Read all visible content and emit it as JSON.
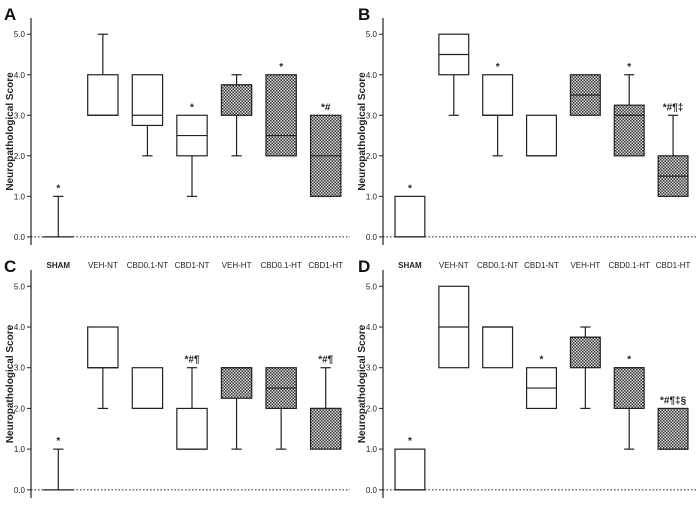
{
  "chart_data": [
    {
      "panel": "A",
      "type": "boxplot",
      "ylabel": "Neuropathological Score",
      "ylim": [
        0,
        5.4
      ],
      "yticks": [
        "0.0",
        "1.0",
        "2.0",
        "3.0",
        "4.0",
        "5.0"
      ],
      "categories": [
        "SHAM",
        "VEH-NT",
        "CBD0.1-NT",
        "CBD1-NT",
        "VEH-HT",
        "CBD0.1-HT",
        "CBD1-HT"
      ],
      "boxes": [
        {
          "min": 0,
          "q1": 0,
          "median": 0,
          "q3": 0,
          "max": 1,
          "fill": "none",
          "annotation": "*"
        },
        {
          "min": 3,
          "q1": 3,
          "median": 3,
          "q3": 4,
          "max": 5,
          "fill": "none",
          "annotation": ""
        },
        {
          "min": 2,
          "q1": 2.75,
          "median": 3,
          "q3": 4,
          "max": 4,
          "fill": "none",
          "annotation": ""
        },
        {
          "min": 1,
          "q1": 2,
          "median": 2.5,
          "q3": 3,
          "max": 3,
          "fill": "none",
          "annotation": "*"
        },
        {
          "min": 2,
          "q1": 3,
          "median": 3.75,
          "q3": 3.75,
          "max": 4,
          "fill": "dotted",
          "annotation": ""
        },
        {
          "min": 2,
          "q1": 2,
          "median": 2.5,
          "q3": 4,
          "max": 4,
          "fill": "dotted",
          "annotation": "*"
        },
        {
          "min": 1,
          "q1": 1,
          "median": 2,
          "q3": 3,
          "max": 3,
          "fill": "dotted",
          "annotation": "*#"
        }
      ]
    },
    {
      "panel": "B",
      "type": "boxplot",
      "ylabel": "Neuropathological Score",
      "ylim": [
        0,
        5.4
      ],
      "yticks": [
        "0.0",
        "1.0",
        "2.0",
        "3.0",
        "4.0",
        "5.0"
      ],
      "categories": [
        "SHAM",
        "VEH-NT",
        "CBD0.1-NT",
        "CBD1-NT",
        "VEH-HT",
        "CBD0.1-HT",
        "CBD1-HT"
      ],
      "boxes": [
        {
          "min": 0,
          "q1": 0,
          "median": 0,
          "q3": 1,
          "max": 1,
          "fill": "none",
          "annotation": "*"
        },
        {
          "min": 3,
          "q1": 4,
          "median": 4.5,
          "q3": 5,
          "max": 5,
          "fill": "none",
          "annotation": ""
        },
        {
          "min": 2,
          "q1": 3,
          "median": 3,
          "q3": 4,
          "max": 4,
          "fill": "none",
          "annotation": "*"
        },
        {
          "min": 2,
          "q1": 2,
          "median": 2,
          "q3": 3,
          "max": 3,
          "fill": "none",
          "annotation": ""
        },
        {
          "min": 3,
          "q1": 3,
          "median": 3.5,
          "q3": 4,
          "max": 4,
          "fill": "dotted",
          "annotation": ""
        },
        {
          "min": 2,
          "q1": 2,
          "median": 3,
          "q3": 3.25,
          "max": 4,
          "fill": "dotted",
          "annotation": "*"
        },
        {
          "min": 1,
          "q1": 1,
          "median": 1.5,
          "q3": 2,
          "max": 3,
          "fill": "dotted",
          "annotation": "*#¶‡"
        }
      ]
    },
    {
      "panel": "C",
      "type": "boxplot",
      "ylabel": "Neuropathological Score",
      "ylim": [
        0,
        5.4
      ],
      "yticks": [
        "0.0",
        "1.0",
        "2.0",
        "3.0",
        "4.0",
        "5.0"
      ],
      "categories": [
        "SHAM",
        "VEH-NT",
        "CBD0.1-NT",
        "CBD1-NT",
        "VEH-HT",
        "CBD0.1-HT",
        "CBD1-HT"
      ],
      "boxes": [
        {
          "min": 0,
          "q1": 0,
          "median": 0,
          "q3": 0,
          "max": 1,
          "fill": "none",
          "annotation": "*"
        },
        {
          "min": 2,
          "q1": 3,
          "median": 3,
          "q3": 4,
          "max": 4,
          "fill": "none",
          "annotation": ""
        },
        {
          "min": 2,
          "q1": 2,
          "median": 2,
          "q3": 3,
          "max": 3,
          "fill": "none",
          "annotation": ""
        },
        {
          "min": 1,
          "q1": 1,
          "median": 1,
          "q3": 2,
          "max": 3,
          "fill": "none",
          "annotation": "*#¶"
        },
        {
          "min": 1,
          "q1": 2.25,
          "median": 3,
          "q3": 3,
          "max": 3,
          "fill": "dotted",
          "annotation": ""
        },
        {
          "min": 1,
          "q1": 2,
          "median": 2.5,
          "q3": 3,
          "max": 3,
          "fill": "dotted",
          "annotation": ""
        },
        {
          "min": 1,
          "q1": 1,
          "median": 2,
          "q3": 2,
          "max": 3,
          "fill": "dotted",
          "annotation": "*#¶"
        }
      ]
    },
    {
      "panel": "D",
      "type": "boxplot",
      "ylabel": "Neuropathological Score",
      "ylim": [
        0,
        5.4
      ],
      "yticks": [
        "0.0",
        "1.0",
        "2.0",
        "3.0",
        "4.0",
        "5.0"
      ],
      "categories": [
        "SHAM",
        "VEH-NT",
        "CBD0.1-NT",
        "CBD1-NT",
        "VEH-HT",
        "CBD0.1-HT",
        "CBD1-HT"
      ],
      "boxes": [
        {
          "min": 0,
          "q1": 0,
          "median": 0,
          "q3": 1,
          "max": 1,
          "fill": "none",
          "annotation": "*"
        },
        {
          "min": 3,
          "q1": 3,
          "median": 4,
          "q3": 5,
          "max": 5,
          "fill": "none",
          "annotation": ""
        },
        {
          "min": 3,
          "q1": 3,
          "median": 4,
          "q3": 4,
          "max": 4,
          "fill": "none",
          "annotation": ""
        },
        {
          "min": 2,
          "q1": 2,
          "median": 2.5,
          "q3": 3,
          "max": 3,
          "fill": "none",
          "annotation": "*"
        },
        {
          "min": 2,
          "q1": 3,
          "median": 3.75,
          "q3": 3.75,
          "max": 4,
          "fill": "dotted",
          "annotation": ""
        },
        {
          "min": 1,
          "q1": 2,
          "median": 3,
          "q3": 3,
          "max": 3,
          "fill": "dotted",
          "annotation": "*"
        },
        {
          "min": 1,
          "q1": 1,
          "median": 1,
          "q3": 2,
          "max": 2,
          "fill": "dotted",
          "annotation": "*#¶‡§"
        }
      ]
    }
  ]
}
